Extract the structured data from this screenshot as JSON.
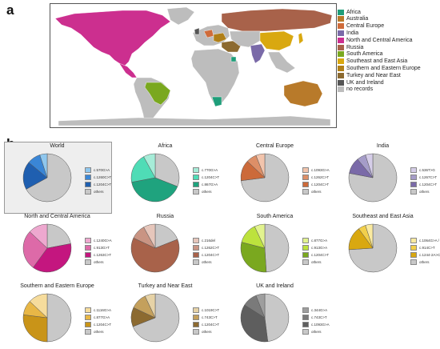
{
  "panel_a_label": "a",
  "panel_b_label": "b",
  "map_legend": [
    {
      "label": "Africa",
      "color": "#1f9e7a"
    },
    {
      "label": "Australia",
      "color": "#b87a2a"
    },
    {
      "label": "Central Europe",
      "color": "#cf6b3a"
    },
    {
      "label": "India",
      "color": "#7a6aa8"
    },
    {
      "label": "North and Central America",
      "color": "#cc2f8f"
    },
    {
      "label": "Russia",
      "color": "#a8624a"
    },
    {
      "label": "South America",
      "color": "#7aa81f"
    },
    {
      "label": "Southeast and East Asia",
      "color": "#d9a810"
    },
    {
      "label": "Southern and Eastern Europe",
      "color": "#b07f18"
    },
    {
      "label": "Turkey and Near East",
      "color": "#8c6a30"
    },
    {
      "label": "UK and Ireland",
      "color": "#555555"
    },
    {
      "label": "no records",
      "color": "#bdbdbd"
    }
  ],
  "chart_data": [
    {
      "type": "pie",
      "title": "World",
      "labels": [
        "c.570G>A",
        "c.1260C>T",
        "c.1204C>T",
        "others"
      ],
      "values": [
        5,
        9,
        19,
        67
      ],
      "colors": [
        "#8fc7ee",
        "#3a86d6",
        "#1f5fb0",
        "#c8c8c8"
      ]
    },
    {
      "type": "pie",
      "title": "Africa",
      "labels": [
        "c.770G>A",
        "c.1204C>T",
        "c.867G>A",
        "others"
      ],
      "values": [
        8,
        20,
        41,
        31
      ],
      "colors": [
        "#a6ecd8",
        "#4fdcb6",
        "#1fa37e",
        "#c8c8c8"
      ]
    },
    {
      "type": "pie",
      "title": "Central Europe",
      "labels": [
        "c.1093G>A",
        "c.1262C>T",
        "c.1204C>T",
        "others"
      ],
      "values": [
        6,
        7,
        14,
        73
      ],
      "colors": [
        "#f2c4ac",
        "#dd8f67",
        "#cc6a3a",
        "#c8c8c8"
      ]
    },
    {
      "type": "pie",
      "title": "India",
      "labels": [
        "c.536T>G",
        "c.1267C>T",
        "c.1204C>T",
        "others"
      ],
      "values": [
        5,
        6,
        11,
        78
      ],
      "colors": [
        "#d5cde8",
        "#a59cc8",
        "#7a6aa8",
        "#c8c8c8"
      ]
    },
    {
      "type": "pie",
      "title": "North and Central America",
      "labels": [
        "c.1240G>A",
        "c.913G>T",
        "c.1263C>T",
        "others"
      ],
      "values": [
        13,
        27,
        38,
        22
      ],
      "colors": [
        "#eea8cf",
        "#dd6aa8",
        "#c4167f",
        "#c8c8c8"
      ]
    },
    {
      "type": "pie",
      "title": "Russia",
      "labels": [
        "c.216del",
        "c.1262C>T",
        "c.1204C>T",
        "others"
      ],
      "values": [
        8,
        10,
        63,
        19
      ],
      "colors": [
        "#e6c6bb",
        "#c99483",
        "#a8624a",
        "#c8c8c8"
      ]
    },
    {
      "type": "pie",
      "title": "South America",
      "labels": [
        "c.877G>A",
        "c.913G>A",
        "c.1204C>T",
        "others"
      ],
      "values": [
        7,
        14,
        30,
        49
      ],
      "colors": [
        "#e2f38f",
        "#bde23d",
        "#7aa81f",
        "#c8c8c8"
      ]
    },
    {
      "type": "pie",
      "title": "Southeast and East Asia",
      "labels": [
        "c.1064G>A / c.416C>T",
        "c.914C>T",
        "c.1244-2A>C",
        "others"
      ],
      "values": [
        5,
        5,
        16,
        74
      ],
      "colors": [
        "#faeaa0",
        "#f2cf4a",
        "#d9a810",
        "#c8c8c8"
      ]
    },
    {
      "type": "pie",
      "title": "Southern and Eastern Europe",
      "labels": [
        "c.1116G>A",
        "c.877G>A",
        "c.1204C>T",
        "others"
      ],
      "values": [
        13,
        10,
        27,
        50
      ],
      "colors": [
        "#f6dc9c",
        "#e8b746",
        "#c99418",
        "#c8c8c8"
      ]
    },
    {
      "type": "pie",
      "title": "Turkey and Near East",
      "labels": [
        "c.1019C>T",
        "c.743C>T",
        "c.1204C>T",
        "others"
      ],
      "values": [
        7,
        11,
        13,
        69
      ],
      "colors": [
        "#e6d2a6",
        "#c4a05c",
        "#8c6a30",
        "#c8c8c8"
      ]
    },
    {
      "type": "pie",
      "title": "UK and Ireland",
      "labels": [
        "c.344G>A",
        "c.743C>T",
        "c.1093G>A",
        "others"
      ],
      "values": [
        6,
        10,
        36,
        48
      ],
      "colors": [
        "#9e9e9e",
        "#7a7a7a",
        "#5e5e5e",
        "#c8c8c8"
      ]
    }
  ]
}
